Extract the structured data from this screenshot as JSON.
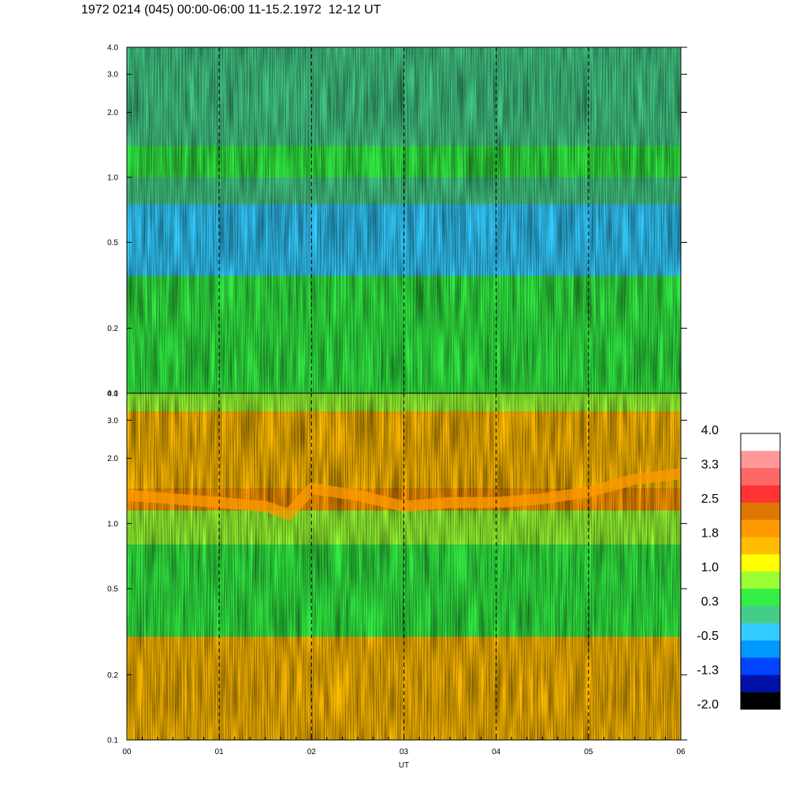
{
  "chart_data": {
    "type": "heatmap",
    "title": "1972 0214 (045) 00:00-06:00 11-15.2.1972  12-12 UT",
    "xlabel": "UT",
    "x_ticks": [
      "00",
      "01",
      "02",
      "03",
      "04",
      "05",
      "06"
    ],
    "xlim": [
      0,
      6
    ],
    "x_dashed_lines": [
      1,
      2,
      3,
      4,
      5
    ],
    "panels": [
      {
        "name": "top",
        "y_scale": "log",
        "ylim": [
          0.1,
          4.0
        ],
        "y_ticks": [
          {
            "value": 0.1,
            "label": "0.1"
          },
          {
            "value": 0.2,
            "label": "0.2"
          },
          {
            "value": 0.5,
            "label": "0.5"
          },
          {
            "value": 1.0,
            "label": "1.0"
          },
          {
            "value": 2.0,
            "label": "2.0"
          },
          {
            "value": 3.0,
            "label": "3.0"
          },
          {
            "value": 4.0,
            "label": "4.0"
          }
        ],
        "bands": [
          {
            "y_from": 0.1,
            "y_to": 0.35,
            "level": 0.25
          },
          {
            "y_from": 0.35,
            "y_to": 0.75,
            "level": -0.2
          },
          {
            "y_from": 0.75,
            "y_to": 1.0,
            "level": 0.2
          },
          {
            "y_from": 1.0,
            "y_to": 1.4,
            "level": 0.6
          },
          {
            "y_from": 1.4,
            "y_to": 4.0,
            "level": 0.1
          }
        ]
      },
      {
        "name": "bottom",
        "y_scale": "log",
        "ylim": [
          0.1,
          4.0
        ],
        "y_ticks": [
          {
            "value": 0.1,
            "label": "0.1"
          },
          {
            "value": 0.2,
            "label": "0.2"
          },
          {
            "value": 0.5,
            "label": "0.5"
          },
          {
            "value": 1.0,
            "label": "1.0"
          },
          {
            "value": 2.0,
            "label": "2.0"
          },
          {
            "value": 3.0,
            "label": "3.0"
          },
          {
            "value": 4.0,
            "label": "4.0"
          }
        ],
        "bands": [
          {
            "y_from": 0.1,
            "y_to": 0.3,
            "level": 1.5
          },
          {
            "y_from": 0.3,
            "y_to": 0.8,
            "level": 0.6
          },
          {
            "y_from": 0.8,
            "y_to": 1.15,
            "level": 0.9
          },
          {
            "y_from": 1.15,
            "y_to": 1.45,
            "level": 1.9
          },
          {
            "y_from": 1.45,
            "y_to": 3.3,
            "level": 1.4
          },
          {
            "y_from": 3.3,
            "y_to": 4.0,
            "level": 0.7
          }
        ],
        "ridge": [
          {
            "x": 0.0,
            "y": 1.35
          },
          {
            "x": 0.5,
            "y": 1.3
          },
          {
            "x": 1.0,
            "y": 1.25
          },
          {
            "x": 1.5,
            "y": 1.2
          },
          {
            "x": 1.75,
            "y": 1.1
          },
          {
            "x": 2.0,
            "y": 1.45
          },
          {
            "x": 2.5,
            "y": 1.35
          },
          {
            "x": 3.0,
            "y": 1.2
          },
          {
            "x": 3.5,
            "y": 1.25
          },
          {
            "x": 4.0,
            "y": 1.25
          },
          {
            "x": 4.5,
            "y": 1.3
          },
          {
            "x": 5.0,
            "y": 1.4
          },
          {
            "x": 5.5,
            "y": 1.6
          },
          {
            "x": 6.0,
            "y": 1.7
          }
        ]
      }
    ],
    "colorbar": {
      "labels": [
        "4.0",
        "3.3",
        "2.5",
        "1.8",
        "1.0",
        "0.3",
        "-0.5",
        "-1.3",
        "-2.0"
      ],
      "vmin": -2.0,
      "vmax": 4.0,
      "colors": [
        "#000000",
        "#0011aa",
        "#0044ff",
        "#0099ff",
        "#33ccff",
        "#44cc88",
        "#33ee44",
        "#99ff33",
        "#ffff00",
        "#ffbb00",
        "#ff9900",
        "#dd7700",
        "#ff3333",
        "#ff6666",
        "#ff9999",
        "#ffffff"
      ]
    }
  }
}
